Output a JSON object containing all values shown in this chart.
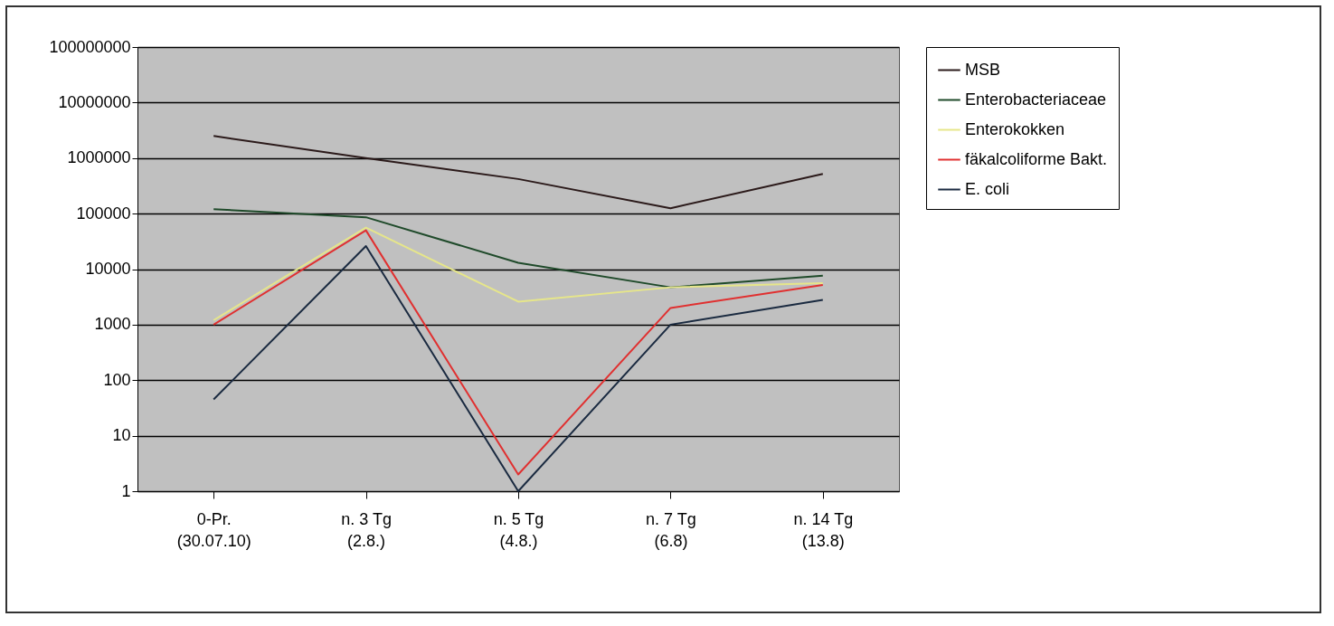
{
  "chart_data": {
    "type": "line",
    "categories": [
      "0-Pr.\n(30.07.10)",
      "n. 3 Tg\n(2.8.)",
      "n. 5 Tg\n(4.8.)",
      "n. 7 Tg\n(6.8)",
      "n. 14 Tg\n(13.8)"
    ],
    "series": [
      {
        "name": "MSB",
        "color": "#2b1a1a",
        "values": [
          2500000,
          1000000,
          420000,
          125000,
          520000
        ]
      },
      {
        "name": "Enterobacteriaceae",
        "color": "#1f4a2a",
        "values": [
          120000,
          86000,
          13000,
          4700,
          7600
        ]
      },
      {
        "name": "Enterokokken",
        "color": "#e6e68a",
        "values": [
          1200,
          56000,
          2600,
          4700,
          5600
        ]
      },
      {
        "name": "fäkalcoliforme Bakt.",
        "color": "#e03030",
        "values": [
          1000,
          50000,
          2,
          2000,
          5200
        ]
      },
      {
        "name": "E. coli",
        "color": "#1a2a40",
        "values": [
          45,
          26000,
          1,
          1000,
          2800
        ]
      }
    ],
    "log": "y",
    "ylim": [
      1,
      100000000
    ],
    "yticks": [
      1,
      10,
      100,
      1000,
      10000,
      100000,
      1000000,
      10000000,
      100000000
    ],
    "grid": "y",
    "legend": "right",
    "marker": "none",
    "line_style": "solid"
  }
}
